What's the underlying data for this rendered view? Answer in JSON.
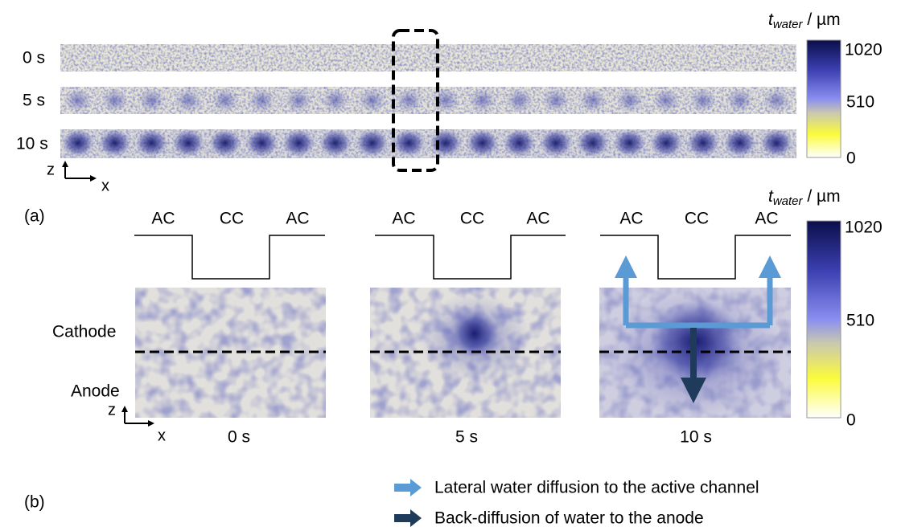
{
  "strips": {
    "time_labels": [
      "0 s",
      "5 s",
      "10 s"
    ],
    "axis": {
      "z": "z",
      "x": "x"
    }
  },
  "colorbar_top": {
    "title": {
      "symbol": "t",
      "subscript": "water",
      "unit": " / µm"
    },
    "ticks": [
      "1020",
      "510",
      "0"
    ]
  },
  "label_a": "(a)",
  "panels": [
    {
      "profile": [
        "AC",
        "CC",
        "AC"
      ],
      "time": "0 s"
    },
    {
      "profile": [
        "AC",
        "CC",
        "AC"
      ],
      "time": "5 s"
    },
    {
      "profile": [
        "AC",
        "CC",
        "AC"
      ],
      "time": "10 s"
    }
  ],
  "layers": [
    "Cathode",
    "Anode"
  ],
  "panel_axis": {
    "z": "z",
    "x": "x"
  },
  "colorbar_bottom": {
    "title": {
      "symbol": "t",
      "subscript": "water",
      "unit": " / µm"
    },
    "ticks": [
      "1020",
      "510",
      "0"
    ]
  },
  "label_b": "(b)",
  "legend": [
    "Lateral water diffusion to the active channel",
    "Back-diffusion of water to the anode"
  ]
}
